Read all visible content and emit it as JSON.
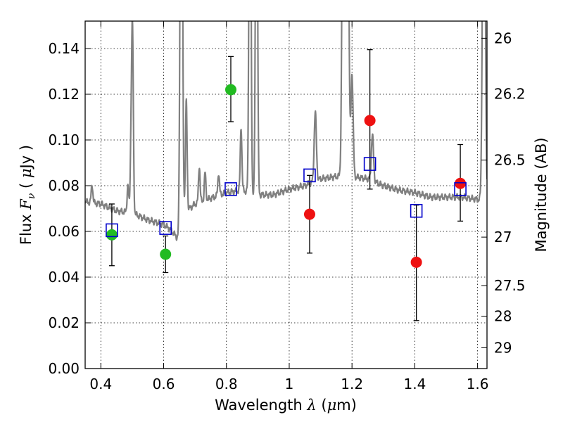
{
  "chart_data": {
    "type": "scatter",
    "xlabel": {
      "prefix": "Wavelength  ",
      "symbol": "λ",
      "suffix": " (",
      "unit_greek": "μ",
      "unit": "m)"
    },
    "ylabel": {
      "prefix": "Flux  ",
      "symbol": "F",
      "sub": "ν",
      "mid": "  ( ",
      "unit_greek": "μ",
      "unit": "Jy )"
    },
    "y2label": "Magnitude (AB)",
    "xlim": [
      0.35,
      1.63
    ],
    "ylim": [
      0.0,
      0.152
    ],
    "xticks": [
      {
        "value": 0.4,
        "label": "0.4"
      },
      {
        "value": 0.6,
        "label": "0.6"
      },
      {
        "value": 0.8,
        "label": "0.8"
      },
      {
        "value": 1.0,
        "label": "1"
      },
      {
        "value": 1.2,
        "label": "1.2"
      },
      {
        "value": 1.4,
        "label": "1.4"
      },
      {
        "value": 1.6,
        "label": "1.6"
      }
    ],
    "yticks": [
      {
        "value": 0.0,
        "label": "0.00"
      },
      {
        "value": 0.02,
        "label": "0.02"
      },
      {
        "value": 0.04,
        "label": "0.04"
      },
      {
        "value": 0.06,
        "label": "0.06"
      },
      {
        "value": 0.08,
        "label": "0.08"
      },
      {
        "value": 0.1,
        "label": "0.10"
      },
      {
        "value": 0.12,
        "label": "0.12"
      },
      {
        "value": 0.14,
        "label": "0.14"
      }
    ],
    "y2ticks": [
      {
        "label": "26",
        "flux": 0.1445
      },
      {
        "label": "26.2",
        "flux": 0.1202
      },
      {
        "label": "26.5",
        "flux": 0.0912
      },
      {
        "label": "27",
        "flux": 0.0575
      },
      {
        "label": "27.5",
        "flux": 0.0363
      },
      {
        "label": "28",
        "flux": 0.0229
      },
      {
        "label": "29",
        "flux": 0.0091
      }
    ],
    "grid": true,
    "colors": {
      "green": "#22bb22",
      "red": "#ee1111",
      "model": "#0000cc",
      "spectrum": "#808080"
    },
    "spectrum": {
      "continuum": [
        [
          0.35,
          0.073
        ],
        [
          0.4,
          0.072
        ],
        [
          0.45,
          0.069
        ],
        [
          0.5,
          0.068
        ],
        [
          0.55,
          0.065
        ],
        [
          0.6,
          0.063
        ],
        [
          0.62,
          0.061
        ],
        [
          0.645,
          0.057
        ],
        [
          0.66,
          0.056
        ],
        [
          0.665,
          0.068
        ],
        [
          0.7,
          0.072
        ],
        [
          0.75,
          0.0745
        ],
        [
          0.8,
          0.077
        ],
        [
          0.85,
          0.078
        ],
        [
          0.9,
          0.076
        ],
        [
          0.95,
          0.076
        ],
        [
          1.0,
          0.0785
        ],
        [
          1.05,
          0.08
        ],
        [
          1.1,
          0.083
        ],
        [
          1.15,
          0.084
        ],
        [
          1.2,
          0.084
        ],
        [
          1.25,
          0.083
        ],
        [
          1.3,
          0.08
        ],
        [
          1.35,
          0.078
        ],
        [
          1.4,
          0.077
        ],
        [
          1.45,
          0.075
        ],
        [
          1.5,
          0.075
        ],
        [
          1.55,
          0.075
        ],
        [
          1.6,
          0.074
        ],
        [
          1.63,
          0.073
        ]
      ],
      "lines": [
        {
          "center": 0.372,
          "height": 0.008,
          "width": 0.0025
        },
        {
          "center": 0.4861,
          "height": 0.012,
          "width": 0.0025
        },
        {
          "center": 0.4959,
          "height": 0.025,
          "width": 0.0025
        },
        {
          "center": 0.5007,
          "height": 0.08,
          "width": 0.0028
        },
        {
          "center": 0.6563,
          "height": 0.25,
          "width": 0.0035
        },
        {
          "center": 0.6716,
          "height": 0.03,
          "width": 0.0025
        },
        {
          "center": 0.6731,
          "height": 0.02,
          "width": 0.0025
        },
        {
          "center": 0.7136,
          "height": 0.016,
          "width": 0.0025
        },
        {
          "center": 0.732,
          "height": 0.012,
          "width": 0.0025
        },
        {
          "center": 0.7751,
          "height": 0.01,
          "width": 0.0025
        },
        {
          "center": 0.8467,
          "height": 0.028,
          "width": 0.0025
        },
        {
          "center": 0.875,
          "height": 0.2,
          "width": 0.003
        },
        {
          "center": 0.8958,
          "height": 0.2,
          "width": 0.003
        },
        {
          "center": 1.083,
          "height": 0.03,
          "width": 0.0035
        },
        {
          "center": 1.173,
          "height": 0.2,
          "width": 0.004
        },
        {
          "center": 1.185,
          "height": 0.2,
          "width": 0.004
        },
        {
          "center": 1.2,
          "height": 0.045,
          "width": 0.0035
        },
        {
          "center": 1.265,
          "height": 0.02,
          "width": 0.0035
        },
        {
          "center": 1.62,
          "height": 0.2,
          "width": 0.004
        }
      ]
    },
    "series": [
      {
        "color": "green",
        "marker": "circle",
        "points": [
          {
            "x": 0.435,
            "y": 0.0585,
            "err": [
              0.0135,
              0.0135
            ]
          },
          {
            "x": 0.606,
            "y": 0.05,
            "err": [
              0.008,
              0.008
            ]
          },
          {
            "x": 0.814,
            "y": 0.122,
            "err": [
              0.014,
              0.0145
            ]
          }
        ]
      },
      {
        "color": "red",
        "marker": "circle",
        "points": [
          {
            "x": 1.065,
            "y": 0.0675,
            "err": [
              0.017,
              0.017
            ]
          },
          {
            "x": 1.257,
            "y": 0.1085,
            "err": [
              0.03,
              0.031
            ]
          },
          {
            "x": 1.405,
            "y": 0.0465,
            "err": [
              0.0255,
              0.025
            ]
          },
          {
            "x": 1.545,
            "y": 0.081,
            "err": [
              0.0165,
              0.017
            ]
          }
        ]
      },
      {
        "color": "model",
        "marker": "square",
        "points": [
          {
            "x": 0.435,
            "y": 0.0605
          },
          {
            "x": 0.606,
            "y": 0.0615
          },
          {
            "x": 0.814,
            "y": 0.0785
          },
          {
            "x": 1.065,
            "y": 0.0845
          },
          {
            "x": 1.257,
            "y": 0.0895
          },
          {
            "x": 1.405,
            "y": 0.069
          },
          {
            "x": 1.545,
            "y": 0.0785
          }
        ]
      }
    ]
  }
}
